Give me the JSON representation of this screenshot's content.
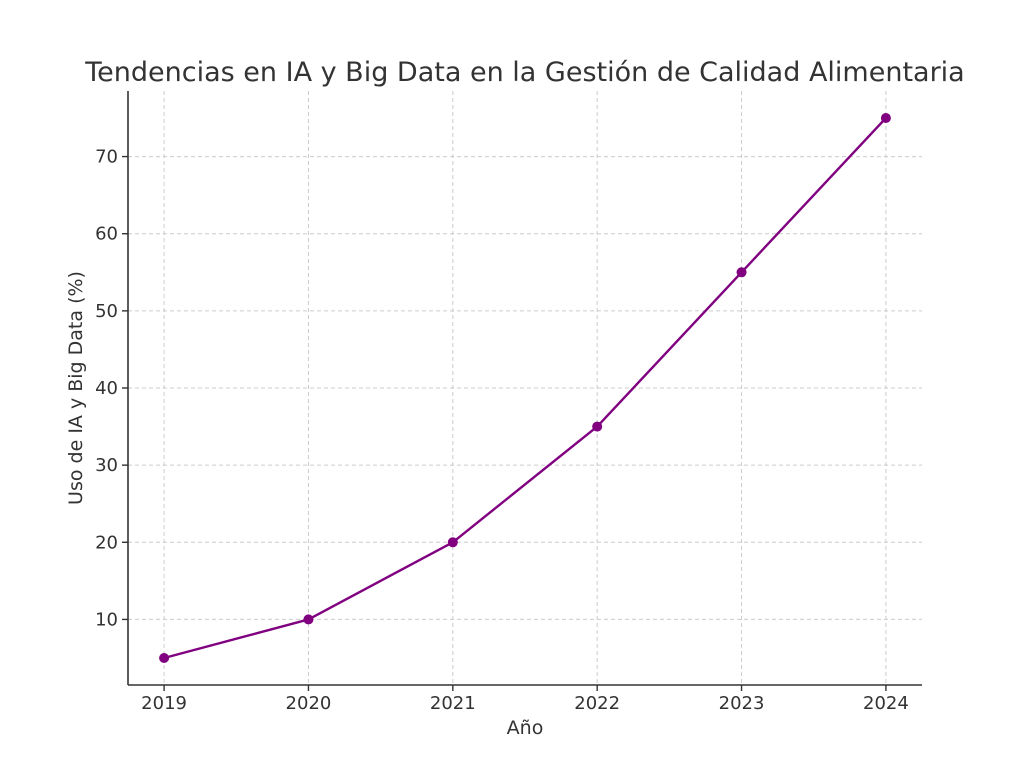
{
  "chart_data": {
    "type": "line",
    "title": "Tendencias en IA y Big Data en la Gestión de Calidad Alimentaria",
    "xlabel": "Año",
    "ylabel": "Uso de IA y Big Data (%)",
    "x": [
      2019,
      2020,
      2021,
      2022,
      2023,
      2024
    ],
    "x_tick_labels": [
      "2019",
      "2020",
      "2021",
      "2022",
      "2023",
      "2024"
    ],
    "y_ticks": [
      10,
      20,
      30,
      40,
      50,
      60,
      70
    ],
    "y_tick_labels": [
      "10",
      "20",
      "30",
      "40",
      "50",
      "60",
      "70"
    ],
    "xlim": [
      2018.75,
      2024.25
    ],
    "ylim": [
      1.5,
      78.5
    ],
    "series": [
      {
        "values": [
          5,
          10,
          20,
          35,
          55,
          75
        ],
        "color": "#800080",
        "marker": "circle"
      }
    ],
    "grid": true,
    "legend": "none"
  }
}
